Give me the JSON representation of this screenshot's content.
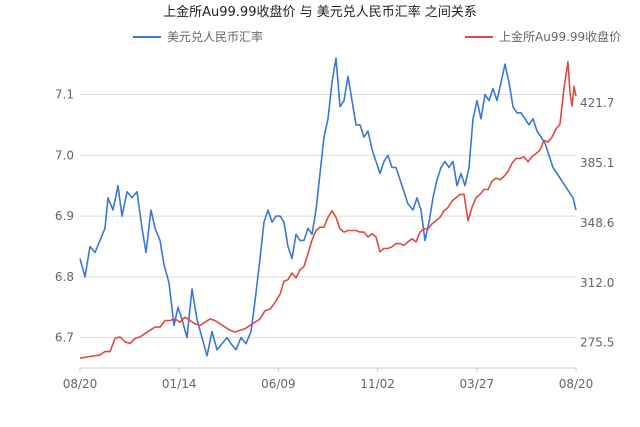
{
  "chart_data": {
    "type": "line",
    "title": "上金所Au99.99收盘价 与 美元兑人民币汇率 之间关系",
    "grid": true,
    "legend_placement": "top",
    "x_tick_labels": [
      "08/20",
      "01/14",
      "06/09",
      "11/02",
      "03/27",
      "08/20"
    ],
    "left_axis": {
      "ylim": [
        6.65,
        7.17
      ],
      "tick_values": [
        6.7,
        6.8,
        6.9,
        7.0,
        7.1
      ],
      "tick_labels": [
        "6.7",
        "6.8",
        "6.9",
        "7.0",
        "7.1"
      ]
    },
    "right_axis": {
      "ylim": [
        260.0,
        453.0
      ],
      "tick_values": [
        275.5,
        312.0,
        348.6,
        385.1,
        421.7
      ],
      "tick_labels": [
        "275.5",
        "312.0",
        "348.6",
        "385.1",
        "421.7"
      ]
    },
    "series": [
      {
        "name": "美元兑人民币汇率",
        "axis": "left",
        "color": "#3a78d8",
        "points": [
          [
            0,
            6.83
          ],
          [
            5,
            6.8
          ],
          [
            10,
            6.85
          ],
          [
            15,
            6.84
          ],
          [
            20,
            6.86
          ],
          [
            25,
            6.88
          ],
          [
            28,
            6.93
          ],
          [
            33,
            6.91
          ],
          [
            38,
            6.95
          ],
          [
            42,
            6.9
          ],
          [
            47,
            6.94
          ],
          [
            52,
            6.93
          ],
          [
            57,
            6.94
          ],
          [
            62,
            6.88
          ],
          [
            66,
            6.84
          ],
          [
            71,
            6.91
          ],
          [
            75,
            6.88
          ],
          [
            80,
            6.86
          ],
          [
            84,
            6.82
          ],
          [
            89,
            6.79
          ],
          [
            94,
            6.72
          ],
          [
            98,
            6.75
          ],
          [
            102,
            6.73
          ],
          [
            107,
            6.7
          ],
          [
            112,
            6.78
          ],
          [
            117,
            6.73
          ],
          [
            122,
            6.7
          ],
          [
            127,
            6.67
          ],
          [
            132,
            6.71
          ],
          [
            137,
            6.68
          ],
          [
            142,
            6.69
          ],
          [
            147,
            6.7
          ],
          [
            151,
            6.69
          ],
          [
            156,
            6.68
          ],
          [
            161,
            6.7
          ],
          [
            166,
            6.69
          ],
          [
            171,
            6.71
          ],
          [
            175,
            6.76
          ],
          [
            180,
            6.83
          ],
          [
            184,
            6.89
          ],
          [
            188,
            6.91
          ],
          [
            192,
            6.89
          ],
          [
            196,
            6.9
          ],
          [
            200,
            6.9
          ],
          [
            204,
            6.89
          ],
          [
            208,
            6.85
          ],
          [
            212,
            6.83
          ],
          [
            216,
            6.87
          ],
          [
            220,
            6.86
          ],
          [
            224,
            6.86
          ],
          [
            228,
            6.88
          ],
          [
            232,
            6.87
          ],
          [
            236,
            6.91
          ],
          [
            240,
            6.97
          ],
          [
            244,
            7.03
          ],
          [
            248,
            7.06
          ],
          [
            252,
            7.12
          ],
          [
            256,
            7.16
          ],
          [
            260,
            7.08
          ],
          [
            264,
            7.09
          ],
          [
            268,
            7.13
          ],
          [
            272,
            7.09
          ],
          [
            276,
            7.05
          ],
          [
            280,
            7.05
          ],
          [
            284,
            7.03
          ],
          [
            288,
            7.04
          ],
          [
            292,
            7.01
          ],
          [
            296,
            6.99
          ],
          [
            300,
            6.97
          ],
          [
            304,
            6.99
          ],
          [
            308,
            7.0
          ],
          [
            312,
            6.98
          ],
          [
            316,
            6.98
          ],
          [
            320,
            6.96
          ],
          [
            324,
            6.94
          ],
          [
            328,
            6.92
          ],
          [
            333,
            6.91
          ],
          [
            337,
            6.93
          ],
          [
            341,
            6.91
          ],
          [
            345,
            6.86
          ],
          [
            349,
            6.89
          ],
          [
            353,
            6.93
          ],
          [
            357,
            6.96
          ],
          [
            361,
            6.98
          ],
          [
            365,
            6.99
          ],
          [
            369,
            6.98
          ],
          [
            373,
            6.99
          ],
          [
            377,
            6.95
          ],
          [
            381,
            6.97
          ],
          [
            385,
            6.95
          ],
          [
            389,
            6.98
          ],
          [
            393,
            7.06
          ],
          [
            397,
            7.09
          ],
          [
            401,
            7.06
          ],
          [
            405,
            7.1
          ],
          [
            409,
            7.09
          ],
          [
            413,
            7.11
          ],
          [
            417,
            7.09
          ],
          [
            421,
            7.12
          ],
          [
            425,
            7.15
          ],
          [
            429,
            7.12
          ],
          [
            433,
            7.08
          ],
          [
            437,
            7.07
          ],
          [
            441,
            7.07
          ],
          [
            445,
            7.06
          ],
          [
            449,
            7.05
          ],
          [
            453,
            7.06
          ],
          [
            457,
            7.04
          ],
          [
            461,
            7.03
          ],
          [
            465,
            7.02
          ],
          [
            469,
            7.0
          ],
          [
            473,
            6.98
          ],
          [
            477,
            6.97
          ],
          [
            481,
            6.96
          ],
          [
            485,
            6.95
          ],
          [
            489,
            6.94
          ],
          [
            493,
            6.93
          ],
          [
            496,
            6.91
          ]
        ]
      },
      {
        "name": "上金所Au99.99收盘价",
        "axis": "right",
        "color": "#e04a3f",
        "points": [
          [
            0,
            266
          ],
          [
            10,
            267
          ],
          [
            20,
            268
          ],
          [
            25,
            270
          ],
          [
            30,
            270
          ],
          [
            35,
            278
          ],
          [
            40,
            279
          ],
          [
            45,
            276
          ],
          [
            50,
            275
          ],
          [
            55,
            278
          ],
          [
            60,
            279
          ],
          [
            65,
            281
          ],
          [
            70,
            283
          ],
          [
            75,
            285
          ],
          [
            80,
            285
          ],
          [
            85,
            289
          ],
          [
            90,
            289
          ],
          [
            95,
            290
          ],
          [
            100,
            288
          ],
          [
            105,
            291
          ],
          [
            110,
            289
          ],
          [
            115,
            287
          ],
          [
            120,
            286
          ],
          [
            125,
            288
          ],
          [
            130,
            290
          ],
          [
            135,
            289
          ],
          [
            140,
            287
          ],
          [
            145,
            285
          ],
          [
            150,
            283
          ],
          [
            155,
            282
          ],
          [
            160,
            283
          ],
          [
            165,
            284
          ],
          [
            170,
            286
          ],
          [
            175,
            288
          ],
          [
            180,
            290
          ],
          [
            185,
            295
          ],
          [
            190,
            296
          ],
          [
            195,
            300
          ],
          [
            200,
            305
          ],
          [
            204,
            313
          ],
          [
            208,
            314
          ],
          [
            212,
            318
          ],
          [
            216,
            315
          ],
          [
            220,
            320
          ],
          [
            224,
            322
          ],
          [
            228,
            330
          ],
          [
            232,
            338
          ],
          [
            236,
            344
          ],
          [
            240,
            346
          ],
          [
            244,
            346
          ],
          [
            248,
            352
          ],
          [
            252,
            356
          ],
          [
            256,
            352
          ],
          [
            260,
            345
          ],
          [
            264,
            343
          ],
          [
            268,
            344
          ],
          [
            272,
            344
          ],
          [
            276,
            344
          ],
          [
            280,
            343
          ],
          [
            284,
            343
          ],
          [
            288,
            340
          ],
          [
            292,
            342
          ],
          [
            296,
            340
          ],
          [
            300,
            331
          ],
          [
            304,
            333
          ],
          [
            308,
            333
          ],
          [
            312,
            334
          ],
          [
            316,
            336
          ],
          [
            320,
            336
          ],
          [
            324,
            335
          ],
          [
            328,
            337
          ],
          [
            332,
            339
          ],
          [
            336,
            337
          ],
          [
            340,
            343
          ],
          [
            344,
            345
          ],
          [
            348,
            345
          ],
          [
            352,
            348
          ],
          [
            356,
            350
          ],
          [
            360,
            352
          ],
          [
            364,
            356
          ],
          [
            368,
            358
          ],
          [
            372,
            362
          ],
          [
            376,
            364
          ],
          [
            380,
            366
          ],
          [
            384,
            366
          ],
          [
            388,
            350
          ],
          [
            392,
            358
          ],
          [
            396,
            364
          ],
          [
            400,
            366
          ],
          [
            404,
            369
          ],
          [
            408,
            369
          ],
          [
            412,
            374
          ],
          [
            416,
            376
          ],
          [
            420,
            375
          ],
          [
            424,
            377
          ],
          [
            428,
            380
          ],
          [
            432,
            385
          ],
          [
            436,
            388
          ],
          [
            440,
            388
          ],
          [
            444,
            389
          ],
          [
            448,
            386
          ],
          [
            452,
            389
          ],
          [
            456,
            391
          ],
          [
            460,
            393
          ],
          [
            464,
            399
          ],
          [
            468,
            398
          ],
          [
            472,
            401
          ],
          [
            476,
            406
          ],
          [
            480,
            409
          ],
          [
            484,
            431
          ],
          [
            488,
            447
          ],
          [
            490,
            428
          ],
          [
            492,
            420
          ],
          [
            494,
            432
          ],
          [
            496,
            426
          ]
        ]
      }
    ],
    "x_range": [
      0,
      496
    ]
  }
}
